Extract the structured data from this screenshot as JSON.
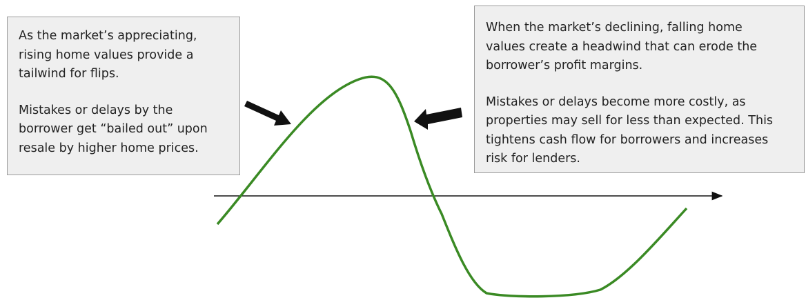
{
  "left_box": {
    "paragraphs": [
      [
        "As the market’s appreciating,",
        "rising home values provide a",
        "tailwind for flips."
      ],
      [
        "Mistakes or delays by the",
        "borrower get “bailed out” upon",
        "resale by higher home prices."
      ]
    ]
  },
  "right_box": {
    "paragraphs": [
      [
        "When the market’s declining, falling home",
        "values create a headwind that can erode the",
        "borrower’s profit margins."
      ],
      [
        "Mistakes or delays become more costly, as",
        "properties may sell for less than expected. This",
        "tightens cash flow for borrowers and increases",
        "risk for lenders."
      ]
    ]
  }
}
